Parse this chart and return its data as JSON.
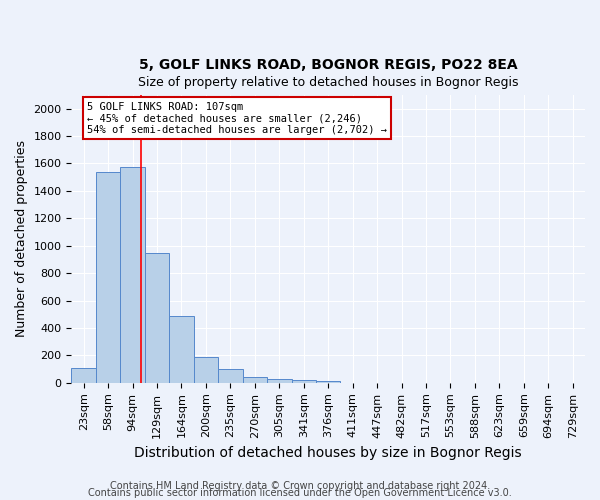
{
  "title_line1": "5, GOLF LINKS ROAD, BOGNOR REGIS, PO22 8EA",
  "title_line2": "Size of property relative to detached houses in Bognor Regis",
  "xlabel": "Distribution of detached houses by size in Bognor Regis",
  "ylabel": "Number of detached properties",
  "footnote1": "Contains HM Land Registry data © Crown copyright and database right 2024.",
  "footnote2": "Contains public sector information licensed under the Open Government Licence v3.0.",
  "bins": [
    "23sqm",
    "58sqm",
    "94sqm",
    "129sqm",
    "164sqm",
    "200sqm",
    "235sqm",
    "270sqm",
    "305sqm",
    "341sqm",
    "376sqm",
    "411sqm",
    "447sqm",
    "482sqm",
    "517sqm",
    "553sqm",
    "588sqm",
    "623sqm",
    "659sqm",
    "694sqm",
    "729sqm"
  ],
  "values": [
    110,
    1540,
    1570,
    950,
    490,
    190,
    100,
    45,
    25,
    20,
    15,
    0,
    0,
    0,
    0,
    0,
    0,
    0,
    0,
    0,
    0
  ],
  "bar_color": "#b8d0e8",
  "bar_edge_color": "#5588cc",
  "red_line_x": 2.35,
  "annotation_line1": "5 GOLF LINKS ROAD: 107sqm",
  "annotation_line2": "← 45% of detached houses are smaller (2,246)",
  "annotation_line3": "54% of semi-detached houses are larger (2,702) →",
  "annotation_box_color": "#ffffff",
  "annotation_box_edge": "#cc0000",
  "ylim": [
    0,
    2100
  ],
  "yticks": [
    0,
    200,
    400,
    600,
    800,
    1000,
    1200,
    1400,
    1600,
    1800,
    2000
  ],
  "background_color": "#edf2fb",
  "grid_color": "#ffffff",
  "title1_fontsize": 10,
  "title2_fontsize": 9,
  "xlabel_fontsize": 10,
  "ylabel_fontsize": 9,
  "footnote_fontsize": 7,
  "tick_fontsize": 8,
  "annot_fontsize": 7.5
}
